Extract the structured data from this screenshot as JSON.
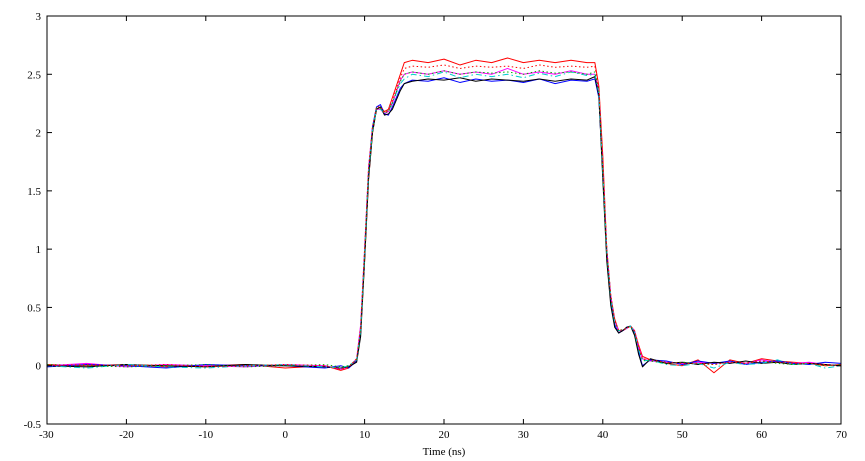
{
  "chart_data": {
    "type": "line",
    "title": "",
    "xlabel": "Time (ns)",
    "ylabel": "",
    "xlim": [
      -30,
      70
    ],
    "ylim": [
      -0.5,
      3
    ],
    "xticks": [
      -30,
      -20,
      -10,
      0,
      10,
      20,
      30,
      40,
      50,
      60,
      70
    ],
    "yticks": [
      -0.5,
      0,
      0.5,
      1,
      1.5,
      2,
      2.5,
      3
    ],
    "xtick_labels": [
      "-30",
      "-20",
      "-10",
      "0",
      "10",
      "20",
      "30",
      "40",
      "50",
      "60",
      "70"
    ],
    "ytick_labels": [
      "-0.5",
      "0",
      "0.5",
      "1",
      "1.5",
      "2",
      "2.5",
      "3"
    ],
    "grid": false,
    "legend": "none",
    "series": [
      {
        "color": "#ff0000",
        "style": "solid",
        "x": [
          -30,
          -25,
          -20,
          -15,
          -10,
          -5,
          0,
          5,
          7,
          8,
          9,
          9.5,
          10,
          10.5,
          11,
          11.5,
          12,
          12.5,
          13,
          13.5,
          14,
          14.5,
          15,
          16,
          18,
          20,
          22,
          24,
          26,
          28,
          30,
          32,
          34,
          36,
          38,
          39,
          39.5,
          40,
          40.5,
          41,
          41.5,
          42,
          42.5,
          43,
          43.5,
          44,
          44.5,
          45,
          46,
          48,
          50,
          52,
          54,
          56,
          58,
          60,
          62,
          64,
          66,
          68,
          70
        ],
        "y": [
          0.01,
          0.0,
          0.01,
          -0.01,
          0.0,
          0.01,
          -0.02,
          0.0,
          -0.04,
          -0.02,
          0.05,
          0.3,
          0.9,
          1.6,
          2.0,
          2.2,
          2.22,
          2.18,
          2.2,
          2.3,
          2.4,
          2.5,
          2.6,
          2.62,
          2.6,
          2.63,
          2.58,
          2.62,
          2.6,
          2.64,
          2.6,
          2.62,
          2.6,
          2.62,
          2.6,
          2.6,
          2.4,
          1.8,
          1.0,
          0.6,
          0.4,
          0.3,
          0.3,
          0.32,
          0.34,
          0.3,
          0.18,
          0.08,
          0.05,
          0.02,
          0.0,
          0.05,
          -0.06,
          0.05,
          0.02,
          0.06,
          0.04,
          0.03,
          0.02,
          0.0,
          0.01
        ]
      },
      {
        "color": "#ff00ff",
        "style": "solid",
        "x": [
          -30,
          -25,
          -20,
          -15,
          -10,
          -5,
          0,
          5,
          7,
          8,
          9,
          9.5,
          10,
          10.5,
          11,
          11.5,
          12,
          12.5,
          13,
          13.5,
          14,
          14.5,
          15,
          16,
          18,
          20,
          22,
          24,
          26,
          28,
          30,
          32,
          34,
          36,
          38,
          39,
          39.5,
          40,
          40.5,
          41,
          41.5,
          42,
          42.5,
          43,
          43.5,
          44,
          44.5,
          45,
          46,
          48,
          50,
          52,
          54,
          56,
          58,
          60,
          62,
          64,
          66,
          68,
          70
        ],
        "y": [
          0.0,
          0.02,
          -0.01,
          0.01,
          0.0,
          -0.01,
          0.01,
          0.0,
          -0.03,
          -0.01,
          0.06,
          0.35,
          1.0,
          1.7,
          2.05,
          2.2,
          2.2,
          2.16,
          2.18,
          2.25,
          2.35,
          2.45,
          2.5,
          2.52,
          2.5,
          2.53,
          2.5,
          2.52,
          2.5,
          2.55,
          2.5,
          2.52,
          2.5,
          2.53,
          2.5,
          2.5,
          2.35,
          1.7,
          1.0,
          0.6,
          0.38,
          0.3,
          0.3,
          0.32,
          0.34,
          0.3,
          0.16,
          0.06,
          0.04,
          0.03,
          0.02,
          0.03,
          0.02,
          0.03,
          0.02,
          0.05,
          0.03,
          0.02,
          0.03,
          0.01,
          0.0
        ]
      },
      {
        "color": "#0000ff",
        "style": "solid",
        "x": [
          -30,
          -25,
          -20,
          -15,
          -10,
          -5,
          0,
          5,
          7,
          8,
          9,
          9.5,
          10,
          10.5,
          11,
          11.5,
          12,
          12.5,
          13,
          13.5,
          14,
          14.5,
          15,
          16,
          18,
          20,
          22,
          24,
          26,
          28,
          30,
          32,
          34,
          36,
          38,
          39,
          39.5,
          40,
          40.5,
          41,
          41.5,
          42,
          42.5,
          43,
          43.5,
          44,
          44.5,
          45,
          46,
          48,
          50,
          52,
          54,
          56,
          58,
          60,
          62,
          64,
          66,
          68,
          70
        ],
        "y": [
          -0.01,
          0.01,
          0.0,
          -0.02,
          0.01,
          0.0,
          0.0,
          -0.02,
          0.0,
          -0.02,
          0.04,
          0.28,
          0.95,
          1.65,
          2.05,
          2.22,
          2.24,
          2.16,
          2.15,
          2.22,
          2.3,
          2.38,
          2.42,
          2.45,
          2.44,
          2.47,
          2.43,
          2.46,
          2.44,
          2.45,
          2.43,
          2.46,
          2.42,
          2.45,
          2.44,
          2.46,
          2.3,
          1.65,
          0.95,
          0.55,
          0.35,
          0.28,
          0.3,
          0.33,
          0.34,
          0.28,
          0.12,
          0.0,
          0.05,
          0.04,
          0.01,
          0.04,
          0.02,
          0.04,
          0.01,
          0.03,
          0.04,
          0.02,
          0.01,
          0.03,
          0.02
        ]
      },
      {
        "color": "#000000",
        "style": "solid",
        "x": [
          -30,
          -25,
          -20,
          -15,
          -10,
          -5,
          0,
          5,
          7,
          8,
          9,
          9.5,
          10,
          10.5,
          11,
          11.5,
          12,
          12.5,
          13,
          13.5,
          14,
          14.5,
          15,
          16,
          18,
          20,
          22,
          24,
          26,
          28,
          30,
          32,
          34,
          36,
          38,
          39,
          39.5,
          40,
          40.5,
          41,
          41.5,
          42,
          42.5,
          43,
          43.5,
          44,
          44.5,
          45,
          46,
          48,
          50,
          52,
          54,
          56,
          58,
          60,
          62,
          64,
          66,
          68,
          70
        ],
        "y": [
          0.0,
          -0.01,
          0.01,
          0.0,
          -0.01,
          0.01,
          0.0,
          -0.01,
          -0.02,
          -0.01,
          0.03,
          0.25,
          0.9,
          1.6,
          2.0,
          2.2,
          2.22,
          2.15,
          2.16,
          2.2,
          2.28,
          2.36,
          2.42,
          2.44,
          2.46,
          2.45,
          2.47,
          2.44,
          2.46,
          2.45,
          2.44,
          2.46,
          2.44,
          2.46,
          2.45,
          2.48,
          2.32,
          1.6,
          0.9,
          0.52,
          0.33,
          0.28,
          0.3,
          0.33,
          0.34,
          0.26,
          0.1,
          -0.01,
          0.06,
          0.02,
          0.03,
          0.01,
          0.03,
          0.02,
          0.04,
          0.02,
          0.03,
          0.01,
          0.02,
          0.01,
          0.0
        ]
      },
      {
        "color": "#00cccc",
        "style": "dashdot",
        "x": [
          -30,
          -25,
          -20,
          -15,
          -10,
          -5,
          0,
          5,
          7,
          8,
          9,
          9.5,
          10,
          10.5,
          11,
          11.5,
          12,
          12.5,
          13,
          13.5,
          14,
          14.5,
          15,
          16,
          18,
          20,
          22,
          24,
          26,
          28,
          30,
          32,
          34,
          36,
          38,
          39,
          39.5,
          40,
          40.5,
          41,
          41.5,
          42,
          42.5,
          43,
          43.5,
          44,
          44.5,
          45,
          46,
          48,
          50,
          52,
          54,
          56,
          58,
          60,
          62,
          64,
          66,
          68,
          70
        ],
        "y": [
          0.0,
          -0.02,
          0.01,
          -0.01,
          -0.02,
          0.0,
          0.01,
          -0.01,
          -0.02,
          0.0,
          0.05,
          0.3,
          0.95,
          1.65,
          2.02,
          2.2,
          2.2,
          2.17,
          2.19,
          2.26,
          2.34,
          2.42,
          2.46,
          2.5,
          2.48,
          2.52,
          2.47,
          2.5,
          2.48,
          2.5,
          2.47,
          2.51,
          2.48,
          2.52,
          2.49,
          2.5,
          2.34,
          1.68,
          0.98,
          0.58,
          0.37,
          0.3,
          0.31,
          0.32,
          0.34,
          0.29,
          0.14,
          0.04,
          0.05,
          0.01,
          0.0,
          0.02,
          -0.02,
          0.03,
          0.01,
          0.02,
          0.05,
          0.01,
          0.02,
          -0.02,
          0.0
        ]
      },
      {
        "color": "#00aa00",
        "style": "dotted",
        "x": [
          -30,
          -25,
          -20,
          -15,
          -10,
          -5,
          0,
          5,
          7,
          8,
          9,
          9.5,
          10,
          10.5,
          11,
          11.5,
          12,
          12.5,
          13,
          13.5,
          14,
          14.5,
          15,
          16,
          18,
          20,
          22,
          24,
          26,
          28,
          30,
          32,
          34,
          36,
          38,
          39,
          39.5,
          40,
          40.5,
          41,
          41.5,
          42,
          42.5,
          43,
          43.5,
          44,
          44.5,
          45,
          46,
          48,
          50,
          52,
          54,
          56,
          58,
          60,
          62,
          64,
          66,
          68,
          70
        ],
        "y": [
          0.01,
          0.0,
          -0.01,
          0.0,
          0.01,
          -0.01,
          0.0,
          0.01,
          -0.01,
          0.0,
          0.05,
          0.32,
          0.98,
          1.68,
          2.04,
          2.21,
          2.21,
          2.17,
          2.18,
          2.25,
          2.35,
          2.44,
          2.5,
          2.52,
          2.5,
          2.53,
          2.5,
          2.52,
          2.51,
          2.52,
          2.5,
          2.53,
          2.51,
          2.52,
          2.5,
          2.52,
          2.36,
          1.7,
          1.0,
          0.6,
          0.38,
          0.3,
          0.31,
          0.32,
          0.34,
          0.29,
          0.15,
          0.05,
          0.04,
          0.02,
          0.03,
          0.02,
          0.01,
          0.03,
          0.02,
          0.04,
          0.02,
          0.01,
          0.02,
          0.0,
          0.01
        ]
      },
      {
        "color": "#ff0000",
        "style": "dotted",
        "x": [
          -30,
          -25,
          -20,
          -15,
          -10,
          -5,
          0,
          5,
          7,
          8,
          9,
          9.5,
          10,
          10.5,
          11,
          11.5,
          12,
          12.5,
          13,
          13.5,
          14,
          14.5,
          15,
          16,
          18,
          20,
          22,
          24,
          26,
          28,
          30,
          32,
          34,
          36,
          38,
          39,
          39.5,
          40,
          40.5,
          41,
          41.5,
          42,
          42.5,
          43,
          43.5,
          44,
          44.5,
          45,
          46,
          48,
          50,
          52,
          54,
          56,
          58,
          60,
          62,
          64,
          66,
          68,
          70
        ],
        "y": [
          0.0,
          0.01,
          0.0,
          0.01,
          -0.01,
          0.0,
          0.01,
          0.0,
          -0.03,
          -0.01,
          0.06,
          0.33,
          1.0,
          1.7,
          2.05,
          2.22,
          2.22,
          2.17,
          2.19,
          2.27,
          2.37,
          2.47,
          2.55,
          2.57,
          2.56,
          2.58,
          2.55,
          2.57,
          2.56,
          2.57,
          2.55,
          2.58,
          2.56,
          2.57,
          2.56,
          2.57,
          2.38,
          1.75,
          1.0,
          0.6,
          0.39,
          0.3,
          0.31,
          0.32,
          0.34,
          0.3,
          0.16,
          0.06,
          0.05,
          0.03,
          0.02,
          0.02,
          0.01,
          0.03,
          0.02,
          0.04,
          0.03,
          0.02,
          0.02,
          0.01,
          0.0
        ]
      }
    ]
  }
}
